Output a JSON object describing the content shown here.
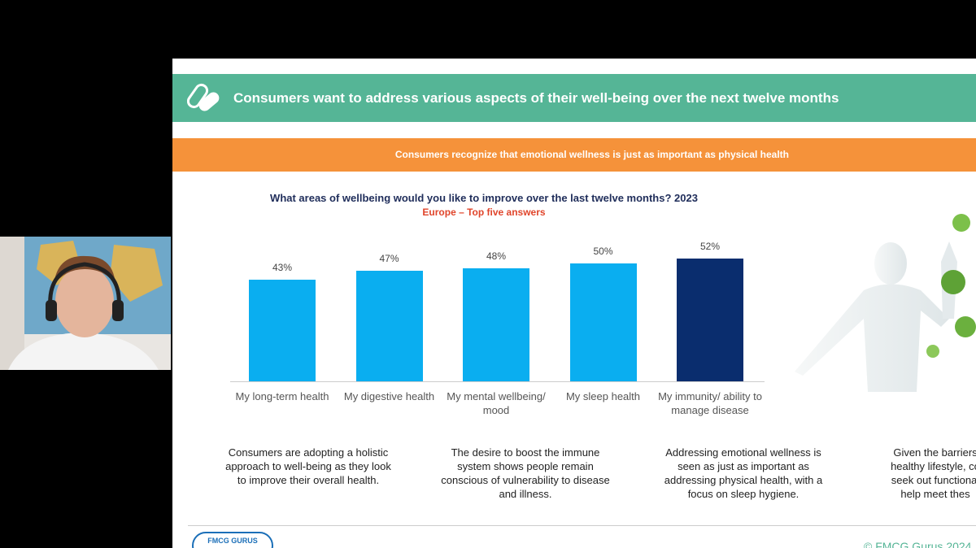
{
  "header": {
    "title": "Consumers want to address various aspects of their well-being over the next twelve months",
    "subtitle": "Consumers recognize that emotional wellness is just as important as physical health"
  },
  "chart_data": {
    "type": "bar",
    "title": "What areas of wellbeing would you like to improve over the last twelve months? 2023",
    "subtitle": "Europe – Top five answers",
    "categories": [
      "My long-term health",
      "My digestive health",
      "My mental wellbeing/ mood",
      "My sleep health",
      "My immunity/ ability to manage disease"
    ],
    "values": [
      43,
      47,
      48,
      50,
      52
    ],
    "value_labels": [
      "43%",
      "47%",
      "48%",
      "50%",
      "52%"
    ],
    "colors": [
      "#0aaef0",
      "#0aaef0",
      "#0aaef0",
      "#0aaef0",
      "#0a2d6e"
    ]
  },
  "notes": [
    "Consumers are adopting a holistic approach to well-being as they look to improve their overall health.",
    "The desire to boost the immune system shows people remain conscious of vulnerability to disease and illness.",
    "Addressing emotional wellness is seen as just as important as addressing physical health, with a focus on sleep hygiene.",
    [
      "Given the barriers",
      "healthy lifestyle, co",
      "seek out functional",
      "help meet thes"
    ]
  ],
  "footer": {
    "logo": "FMCG GURUS",
    "copyright": "© FMCG Gurus 2024"
  }
}
